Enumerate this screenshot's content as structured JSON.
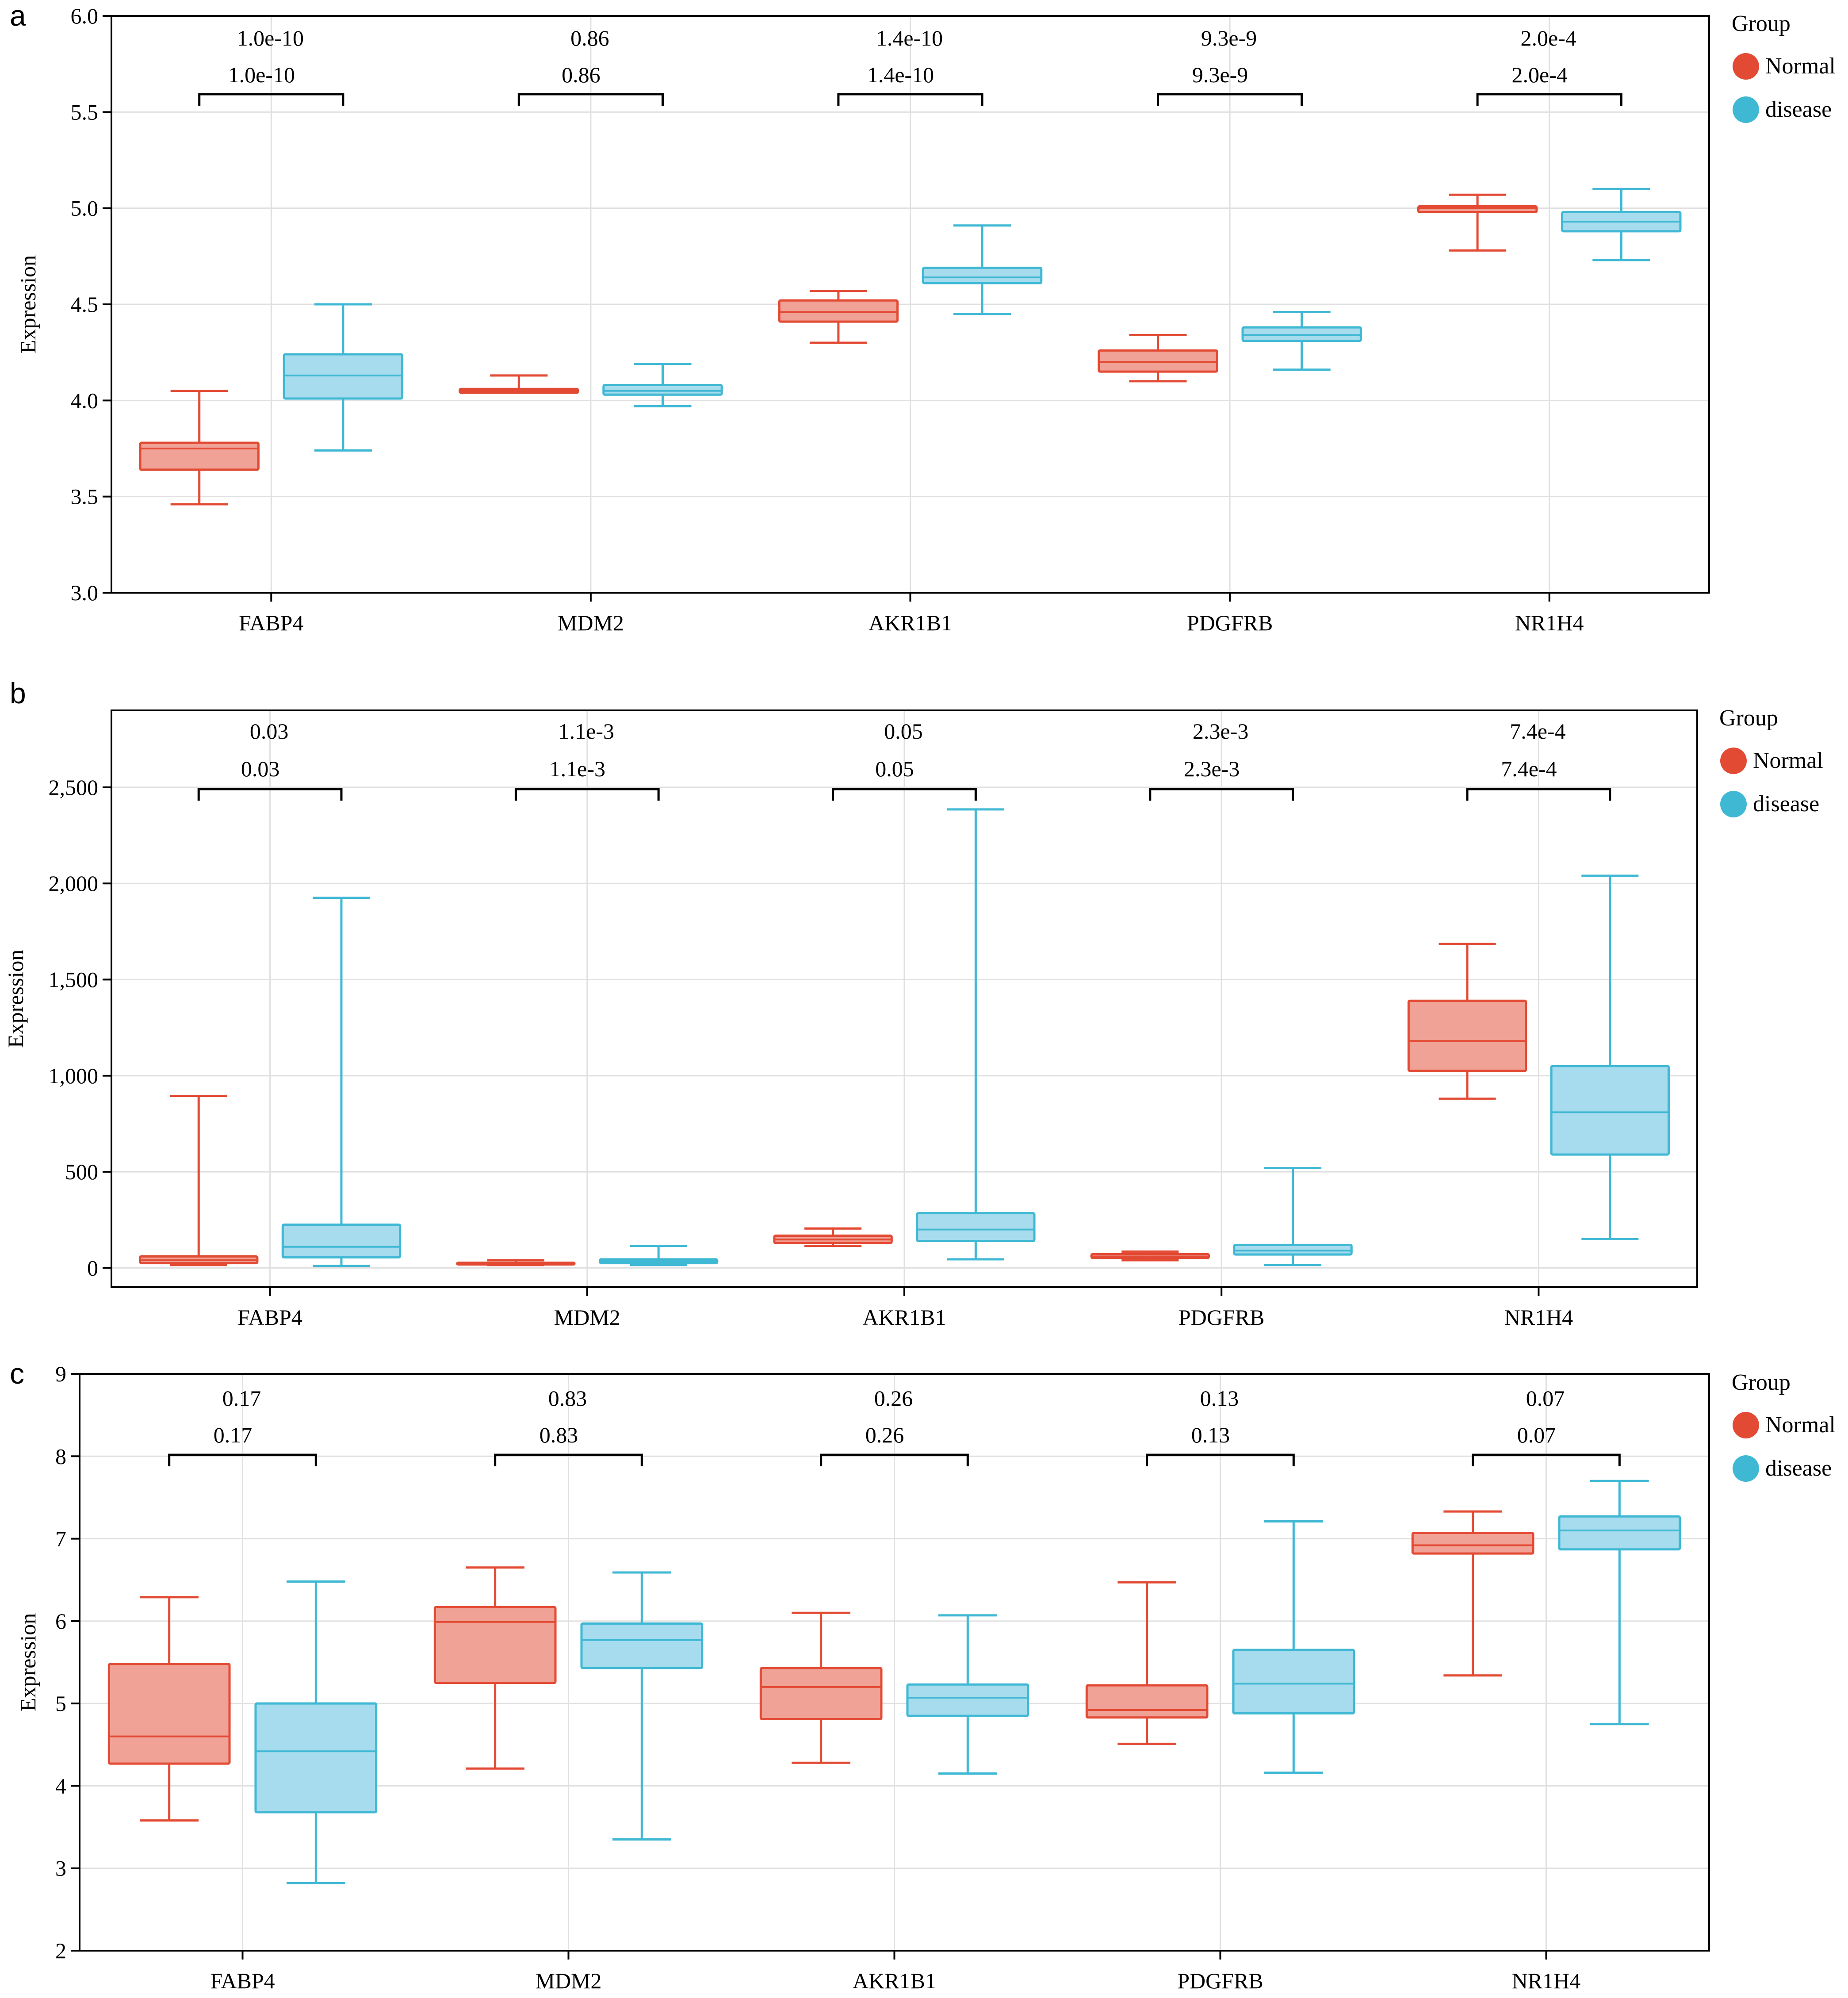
{
  "panels_note": "",
  "chart_data": [
    {
      "panel_label": "a",
      "type": "box",
      "ylabel": "Expression",
      "ylim": [
        3.0,
        6.0
      ],
      "yticks": [
        3.0,
        3.5,
        4.0,
        4.5,
        5.0,
        5.5,
        6.0
      ],
      "ytick_labels": [
        "3.0",
        "3.5",
        "4.0",
        "4.5",
        "5.0",
        "5.5",
        "6.0"
      ],
      "categories": [
        "FABP4",
        "MDM2",
        "AKR1B1",
        "PDGFRB",
        "NR1H4"
      ],
      "legend": {
        "title": "Group",
        "placement": "right",
        "entries": [
          "Normal",
          "disease"
        ]
      },
      "pvalues": [
        "1.0e-10",
        "0.86",
        "1.4e-10",
        "9.3e-9",
        "2.0e-4"
      ],
      "series": [
        {
          "name": "Normal",
          "color": "#e34a33",
          "fill": "#f1a296",
          "boxes": [
            {
              "min": 3.46,
              "q1": 3.64,
              "median": 3.75,
              "q3": 3.78,
              "max": 4.05
            },
            {
              "min": 4.04,
              "q1": 4.04,
              "median": 4.05,
              "q3": 4.06,
              "max": 4.13
            },
            {
              "min": 4.3,
              "q1": 4.41,
              "median": 4.46,
              "q3": 4.52,
              "max": 4.57
            },
            {
              "min": 4.1,
              "q1": 4.15,
              "median": 4.2,
              "q3": 4.26,
              "max": 4.34
            },
            {
              "min": 4.78,
              "q1": 4.98,
              "median": 5.0,
              "q3": 5.01,
              "max": 5.07
            }
          ]
        },
        {
          "name": "disease",
          "color": "#3fb8d4",
          "fill": "#a6dced",
          "boxes": [
            {
              "min": 3.74,
              "q1": 4.01,
              "median": 4.13,
              "q3": 4.24,
              "max": 4.5
            },
            {
              "min": 3.97,
              "q1": 4.03,
              "median": 4.05,
              "q3": 4.08,
              "max": 4.19
            },
            {
              "min": 4.45,
              "q1": 4.61,
              "median": 4.64,
              "q3": 4.69,
              "max": 4.91
            },
            {
              "min": 4.16,
              "q1": 4.31,
              "median": 4.34,
              "q3": 4.38,
              "max": 4.46
            },
            {
              "min": 4.73,
              "q1": 4.88,
              "median": 4.93,
              "q3": 4.98,
              "max": 5.1
            }
          ]
        }
      ]
    },
    {
      "panel_label": "b",
      "type": "box",
      "ylabel": "Expression",
      "ylim": [
        -100,
        2900
      ],
      "yticks": [
        0,
        500,
        1000,
        1500,
        2000,
        2500
      ],
      "ytick_labels": [
        "0",
        "500",
        "1,000",
        "1,500",
        "2,000",
        "2,500"
      ],
      "categories": [
        "FABP4",
        "MDM2",
        "AKR1B1",
        "PDGFRB",
        "NR1H4"
      ],
      "legend": {
        "title": "Group",
        "placement": "right",
        "entries": [
          "Normal",
          "disease"
        ]
      },
      "pvalues": [
        "0.03",
        "1.1e-3",
        "0.05",
        "2.3e-3",
        "7.4e-4"
      ],
      "series": [
        {
          "name": "Normal",
          "color": "#e34a33",
          "fill": "#f1a296",
          "boxes": [
            {
              "min": 15,
              "q1": 25,
              "median": 40,
              "q3": 60,
              "max": 895
            },
            {
              "min": 15,
              "q1": 18,
              "median": 22,
              "q3": 27,
              "max": 40
            },
            {
              "min": 115,
              "q1": 130,
              "median": 148,
              "q3": 168,
              "max": 205
            },
            {
              "min": 40,
              "q1": 52,
              "median": 60,
              "q3": 72,
              "max": 85
            },
            {
              "min": 880,
              "q1": 1025,
              "median": 1180,
              "q3": 1390,
              "max": 1685
            }
          ]
        },
        {
          "name": "disease",
          "color": "#3fb8d4",
          "fill": "#a6dced",
          "boxes": [
            {
              "min": 10,
              "q1": 55,
              "median": 110,
              "q3": 225,
              "max": 1925
            },
            {
              "min": 15,
              "q1": 25,
              "median": 35,
              "q3": 45,
              "max": 115
            },
            {
              "min": 45,
              "q1": 140,
              "median": 200,
              "q3": 285,
              "max": 2385
            },
            {
              "min": 15,
              "q1": 70,
              "median": 90,
              "q3": 120,
              "max": 520
            },
            {
              "min": 150,
              "q1": 590,
              "median": 810,
              "q3": 1050,
              "max": 2040
            }
          ]
        }
      ]
    },
    {
      "panel_label": "c",
      "type": "box",
      "ylabel": "Expression",
      "ylim": [
        2,
        9
      ],
      "yticks": [
        2,
        3,
        4,
        5,
        6,
        7,
        8,
        9
      ],
      "ytick_labels": [
        "2",
        "3",
        "4",
        "5",
        "6",
        "7",
        "8",
        "9"
      ],
      "categories": [
        "FABP4",
        "MDM2",
        "AKR1B1",
        "PDGFRB",
        "NR1H4"
      ],
      "legend": {
        "title": "Group",
        "placement": "right",
        "entries": [
          "Normal",
          "disease"
        ]
      },
      "pvalues": [
        "0.17",
        "0.83",
        "0.26",
        "0.13",
        "0.07"
      ],
      "series": [
        {
          "name": "Normal",
          "color": "#e34a33",
          "fill": "#f1a296",
          "boxes": [
            {
              "min": 3.58,
              "q1": 4.27,
              "median": 4.6,
              "q3": 5.48,
              "max": 6.29
            },
            {
              "min": 4.21,
              "q1": 5.25,
              "median": 5.99,
              "q3": 6.17,
              "max": 6.65
            },
            {
              "min": 4.28,
              "q1": 4.81,
              "median": 5.2,
              "q3": 5.43,
              "max": 6.1
            },
            {
              "min": 4.51,
              "q1": 4.83,
              "median": 4.92,
              "q3": 5.22,
              "max": 6.47
            },
            {
              "min": 5.34,
              "q1": 6.82,
              "median": 6.92,
              "q3": 7.07,
              "max": 7.33
            }
          ]
        },
        {
          "name": "disease",
          "color": "#3fb8d4",
          "fill": "#a6dced",
          "boxes": [
            {
              "min": 2.82,
              "q1": 3.68,
              "median": 4.42,
              "q3": 5.0,
              "max": 6.48
            },
            {
              "min": 3.35,
              "q1": 5.43,
              "median": 5.77,
              "q3": 5.97,
              "max": 6.59
            },
            {
              "min": 4.15,
              "q1": 4.85,
              "median": 5.07,
              "q3": 5.23,
              "max": 6.07
            },
            {
              "min": 4.16,
              "q1": 4.88,
              "median": 5.24,
              "q3": 5.65,
              "max": 7.21
            },
            {
              "min": 4.75,
              "q1": 6.87,
              "median": 7.1,
              "q3": 7.27,
              "max": 7.7
            }
          ]
        }
      ]
    }
  ]
}
